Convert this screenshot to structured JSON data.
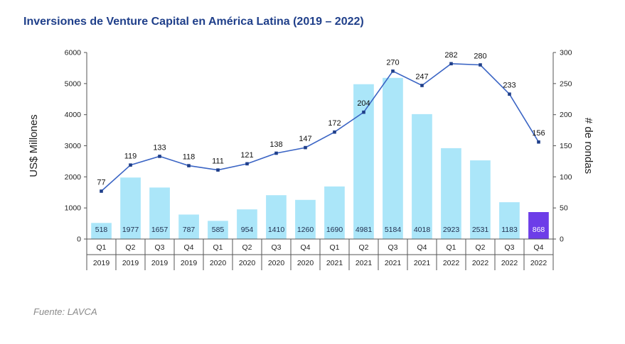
{
  "title": "Inversiones de Venture Capital en América Latina (2019 – 2022)",
  "source": "Fuente: LAVCA",
  "chart_data": {
    "type": "bar",
    "categories": [
      {
        "quarter": "Q1",
        "year": "2019"
      },
      {
        "quarter": "Q2",
        "year": "2019"
      },
      {
        "quarter": "Q3",
        "year": "2019"
      },
      {
        "quarter": "Q4",
        "year": "2019"
      },
      {
        "quarter": "Q1",
        "year": "2020"
      },
      {
        "quarter": "Q2",
        "year": "2020"
      },
      {
        "quarter": "Q3",
        "year": "2020"
      },
      {
        "quarter": "Q4",
        "year": "2020"
      },
      {
        "quarter": "Q1",
        "year": "2021"
      },
      {
        "quarter": "Q2",
        "year": "2021"
      },
      {
        "quarter": "Q3",
        "year": "2021"
      },
      {
        "quarter": "Q4",
        "year": "2021"
      },
      {
        "quarter": "Q1",
        "year": "2022"
      },
      {
        "quarter": "Q2",
        "year": "2022"
      },
      {
        "quarter": "Q3",
        "year": "2022"
      },
      {
        "quarter": "Q4",
        "year": "2022"
      }
    ],
    "series": [
      {
        "type": "bar",
        "axis": "left",
        "values": [
          518,
          1977,
          1657,
          787,
          585,
          954,
          1410,
          1260,
          1690,
          4981,
          5184,
          4018,
          2923,
          2531,
          1183,
          868
        ],
        "color": "#abe6f9",
        "highlight_index": 15,
        "highlight_color": "#6d3de8"
      },
      {
        "type": "line",
        "axis": "right",
        "values": [
          77,
          119,
          133,
          118,
          111,
          121,
          138,
          147,
          172,
          204,
          270,
          247,
          282,
          280,
          233,
          156
        ],
        "color": "#3a64c4"
      }
    ],
    "ylabel": "US$ Millones",
    "y2label": "# de rondas",
    "ylim": [
      0,
      6000
    ],
    "y2lim": [
      0,
      300
    ],
    "yticks": [
      "0",
      "1000",
      "2000",
      "3000",
      "4000",
      "5000",
      "6000"
    ],
    "y2ticks": [
      "0",
      "50",
      "100",
      "150",
      "200",
      "250",
      "300"
    ],
    "grid": false,
    "legend": "none"
  }
}
